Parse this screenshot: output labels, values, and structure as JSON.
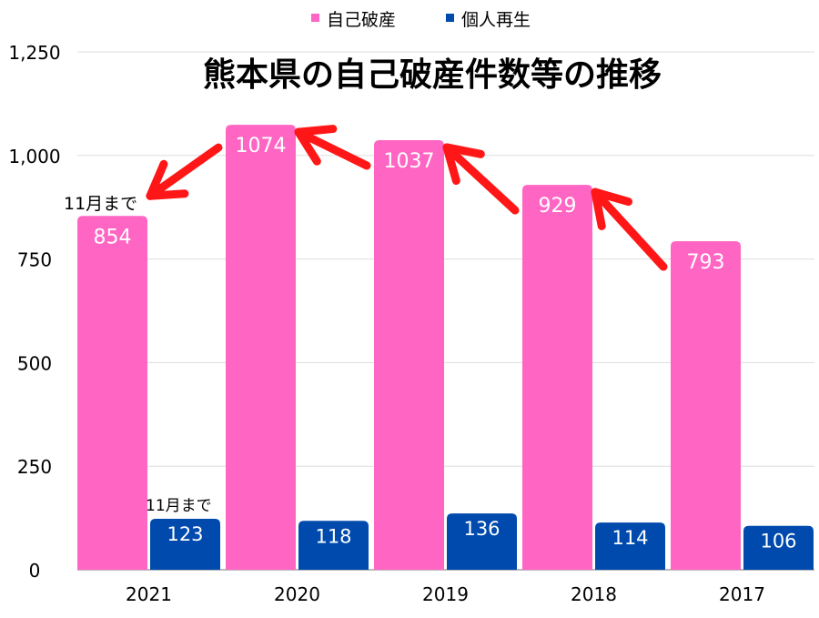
{
  "chart_data": {
    "type": "bar",
    "title": "熊本県の自己破産件数等の推移",
    "categories": [
      "2021",
      "2020",
      "2019",
      "2018",
      "2017"
    ],
    "series": [
      {
        "name": "自己破産",
        "values": [
          854,
          1074,
          1037,
          929,
          793
        ],
        "color": "#ff66c4"
      },
      {
        "name": "個人再生",
        "values": [
          123,
          118,
          136,
          114,
          106
        ],
        "color": "#004aad"
      }
    ],
    "ylim": [
      0,
      1250
    ],
    "yticks": [
      0,
      250,
      500,
      750,
      1000,
      1250
    ],
    "ytick_labels": [
      "0",
      "250",
      "500",
      "750",
      "1,000",
      "1,250"
    ],
    "grid": true,
    "legend": "top-center",
    "annotations": [
      {
        "text": "11月まで",
        "target": "自己破産 2021"
      },
      {
        "text": "11月まで",
        "target": "個人再生 2021"
      }
    ],
    "arrow_color": "#ff1616",
    "arrows": "red arrows pointing from each year's 自己破産 bar toward the next later year"
  }
}
